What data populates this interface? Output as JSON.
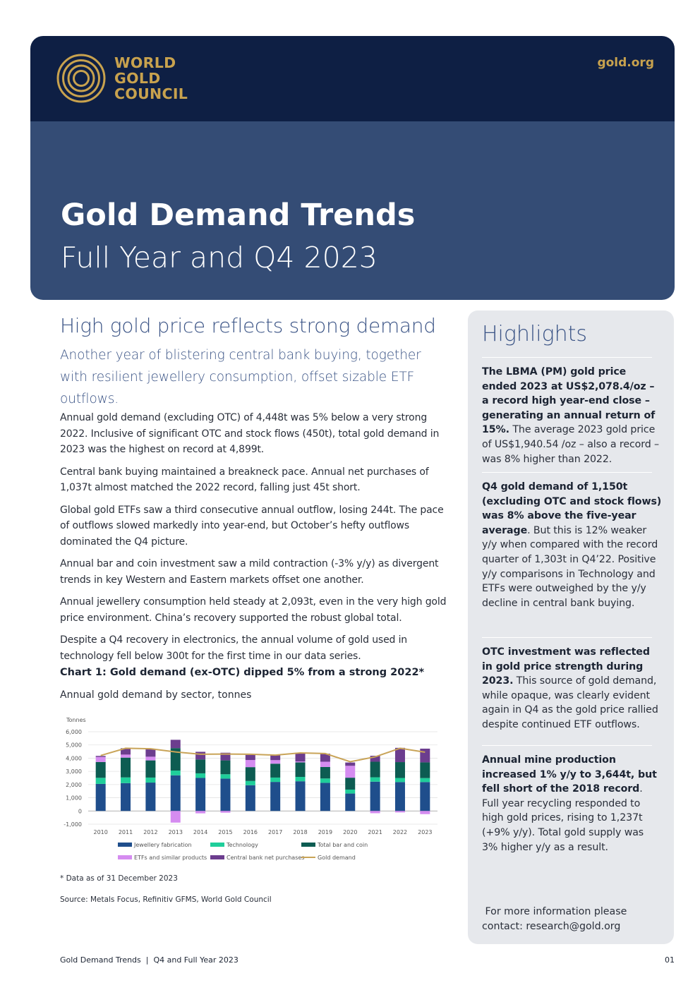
{
  "header": {
    "logo_lines": [
      "WORLD",
      "GOLD",
      "COUNCIL"
    ],
    "site": "gold.org",
    "title": "Gold Demand Trends",
    "subtitle": "Full Year and Q4 2023"
  },
  "main": {
    "heading": "High gold price reflects strong demand",
    "lead": "Another year of blistering central bank buying, together with resilient jewellery consumption, offset sizable ETF outflows.",
    "paragraphs": [
      "Annual gold demand (excluding OTC) of 4,448t was 5% below a very strong 2022. Inclusive of significant OTC and stock flows (450t), total gold demand in 2023 was the highest on record at 4,899t.",
      "Central bank buying maintained a breakneck pace. Annual net purchases of 1,037t almost matched the 2022 record, falling just 45t short.",
      "Global gold ETFs saw a third consecutive annual outflow, losing 244t. The pace of outflows slowed markedly into year-end, but October’s hefty outflows dominated the Q4 picture.",
      "Annual bar and coin investment saw a mild contraction (-3% y/y) as divergent trends in key Western and Eastern markets offset one another.",
      "Annual jewellery consumption held steady at 2,093t, even in the very high gold price environment. China’s recovery supported the robust global total.",
      "Despite a Q4 recovery in electronics, the annual volume of gold used in technology fell below 300t for the first time in our data series."
    ],
    "chart_title": "Chart 1: Gold demand (ex-OTC) dipped 5% from a strong 2022*",
    "chart_subtitle": "Annual gold demand by sector, tonnes",
    "footnote": "* Data as of 31 December 2023",
    "source": "Source: Metals Focus, Refinitiv GFMS, World Gold Council"
  },
  "chart_data": {
    "type": "bar",
    "stacked": true,
    "ylabel": "Tonnes",
    "ylim": [
      -1000,
      6000
    ],
    "yticks": [
      "6,000",
      "5,000",
      "4,000",
      "3,000",
      "2,000",
      "1,000",
      "0",
      "-1,000"
    ],
    "categories": [
      "2010",
      "2011",
      "2012",
      "2013",
      "2014",
      "2015",
      "2016",
      "2017",
      "2018",
      "2019",
      "2020",
      "2021",
      "2022",
      "2023"
    ],
    "series": [
      {
        "name": "Jewellery fabrication",
        "color": "#1f4e8c",
        "values": [
          2050,
          2110,
          2150,
          2700,
          2500,
          2450,
          1950,
          2200,
          2250,
          2130,
          1320,
          2220,
          2190,
          2190
        ]
      },
      {
        "name": "Technology",
        "color": "#1fce9a",
        "values": [
          460,
          430,
          380,
          360,
          350,
          330,
          320,
          330,
          330,
          330,
          300,
          330,
          310,
          300
        ]
      },
      {
        "name": "Total bar and coin",
        "color": "#0d5c52",
        "values": [
          1200,
          1500,
          1300,
          1700,
          1050,
          1050,
          1050,
          1050,
          1100,
          870,
          900,
          1180,
          1200,
          1190
        ]
      },
      {
        "name": "ETFs and similar products",
        "color": "#d58cf0",
        "values": [
          380,
          230,
          280,
          -880,
          -180,
          -130,
          540,
          270,
          70,
          400,
          900,
          -170,
          -110,
          -240
        ]
      },
      {
        "name": "Central bank net purchases",
        "color": "#6c3d8e",
        "values": [
          80,
          480,
          570,
          630,
          580,
          580,
          390,
          380,
          660,
          610,
          250,
          450,
          1080,
          1040
        ]
      }
    ],
    "line": {
      "name": "Gold demand",
      "color": "#c9a458",
      "values": [
        4200,
        4750,
        4710,
        4470,
        4300,
        4310,
        4300,
        4230,
        4400,
        4350,
        3730,
        4100,
        4750,
        4450
      ]
    },
    "legend_position": "bottom"
  },
  "sidebar": {
    "heading": "Highlights",
    "items": [
      {
        "bold": "The LBMA (PM) gold price ended 2023 at US$2,078.4/oz – a record high year-end close – generating an annual return of 15%.",
        "text": " The average 2023 gold price of US$1,940.54 /oz – also a record – was 8% higher than 2022."
      },
      {
        "bold": "Q4 gold demand of 1,150t (excluding OTC and stock flows) was 8% above the five-year average",
        "text": ". But this is 12% weaker y/y when compared with the record quarter of 1,303t in Q4’22. Positive y/y comparisons in Technology and ETFs were outweighed by the y/y decline in central bank buying."
      },
      {
        "bold": "OTC investment was reflected in gold price strength during 2023.",
        "text": " This source of gold demand, while opaque, was clearly evident again in Q4 as the gold price rallied despite continued ETF outflows."
      },
      {
        "bold": "Annual mine production increased 1% y/y to 3,644t, but fell short of the 2018 record",
        "text": ". Full year recycling responded to high gold prices, rising to 1,237t (+9% y/y). Total gold supply was 3% higher y/y as a result."
      }
    ],
    "contact_line1": " For more information please",
    "contact_line2": "contact: research@gold.org"
  },
  "footer": {
    "left": "Gold Demand Trends  |  Q4 and Full Year 2023",
    "page": "01"
  }
}
